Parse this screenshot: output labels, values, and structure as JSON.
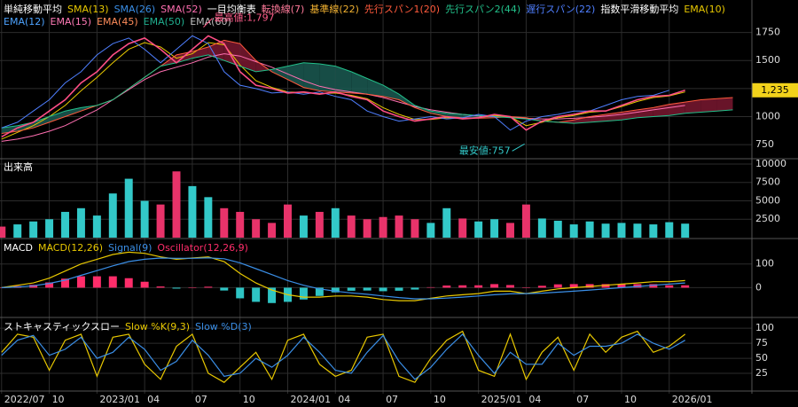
{
  "chart_data": [
    {
      "type": "line",
      "x": [
        0,
        1,
        2,
        3,
        4,
        5,
        6,
        7,
        8,
        9,
        10,
        11,
        12,
        13,
        14,
        15,
        16,
        17,
        18,
        19,
        20,
        21,
        22,
        23,
        24,
        25,
        26,
        27,
        28,
        29,
        30,
        31,
        32,
        33,
        34,
        35,
        36,
        37,
        38,
        39,
        40,
        41,
        42,
        43,
        44,
        45,
        46
      ],
      "xlim": [
        -0.1,
        47.2
      ],
      "ylim": [
        633,
        2023
      ],
      "yticks": [
        750,
        1000,
        1250,
        1500,
        1750
      ],
      "grid": true,
      "price": {
        "color": "#ff4f86",
        "values": [
          820,
          900,
          950,
          1050,
          1150,
          1300,
          1400,
          1550,
          1650,
          1700,
          1600,
          1480,
          1600,
          1720,
          1650,
          1400,
          1280,
          1250,
          1210,
          1220,
          1200,
          1220,
          1180,
          1150,
          1050,
          1000,
          960,
          980,
          1000,
          980,
          990,
          1020,
          1000,
          880,
          960,
          1000,
          1020,
          1050,
          1050,
          1100,
          1150,
          1180,
          1190,
          1235,
          null,
          null,
          null
        ]
      },
      "cloud_colors": {
        "up": "#7a1830",
        "down": "#1b5a52"
      },
      "groups": [
        {
          "title": "単純移動平均",
          "series": [
            {
              "name": "SMA(13)",
              "color": "#e8c800",
              "values": [
                800,
                860,
                920,
                1000,
                1100,
                1230,
                1350,
                1480,
                1600,
                1660,
                1620,
                1520,
                1560,
                1660,
                1640,
                1460,
                1320,
                1260,
                1220,
                1215,
                1205,
                1210,
                1190,
                1160,
                1080,
                1020,
                975,
                975,
                990,
                985,
                990,
                1010,
                1000,
                920,
                950,
                990,
                1010,
                1040,
                1050,
                1090,
                1135,
                1170,
                1185,
                1220,
                null,
                null,
                null
              ]
            },
            {
              "name": "SMA(26)",
              "color": "#3a8ee6"
            },
            {
              "name": "SMA(52)",
              "color": "#ff6fb1",
              "values": [
                780,
                800,
                830,
                870,
                920,
                990,
                1060,
                1150,
                1240,
                1330,
                1400,
                1440,
                1480,
                1530,
                1560,
                1540,
                1490,
                1440,
                1380,
                1320,
                1270,
                1240,
                1220,
                1200,
                1170,
                1130,
                1090,
                1060,
                1040,
                1020,
                1005,
                1000,
                995,
                985,
                980,
                980,
                985,
                995,
                1005,
                1020,
                1040,
                1060,
                1080,
                1100,
                null,
                null,
                null
              ]
            }
          ]
        },
        {
          "title": "一目均衡表",
          "series": [
            {
              "name": "転換線(7)",
              "color": "#ff7a9a"
            },
            {
              "name": "基準線(22)",
              "color": "#f0b030"
            },
            {
              "name": "先行スパン1(20)",
              "color": "#ff5a3c",
              "cloud": true,
              "values": [
                850,
                870,
                900,
                950,
                1000,
                1050,
                1100,
                1150,
                1250,
                1350,
                1450,
                1550,
                1580,
                1620,
                1680,
                1650,
                1500,
                1400,
                1330,
                1260,
                1230,
                1220,
                1210,
                1200,
                1180,
                1150,
                1080,
                1030,
                1000,
                990,
                985,
                990,
                1000,
                990,
                960,
                950,
                970,
                1000,
                1020,
                1040,
                1060,
                1080,
                1110,
                1130,
                1150,
                1160,
                1170
              ]
            },
            {
              "name": "先行スパン2(44)",
              "color": "#22c08a",
              "cloud": true,
              "values": [
                900,
                920,
                950,
                1000,
                1050,
                1080,
                1100,
                1150,
                1250,
                1350,
                1450,
                1480,
                1520,
                1550,
                1500,
                1450,
                1400,
                1420,
                1450,
                1480,
                1470,
                1450,
                1400,
                1340,
                1280,
                1200,
                1100,
                1050,
                1030,
                1020,
                1010,
                1000,
                990,
                980,
                960,
                950,
                940,
                950,
                960,
                970,
                990,
                1000,
                1010,
                1030,
                1040,
                1050,
                1060
              ]
            },
            {
              "name": "遅行スパン(22)",
              "color": "#4f7fff",
              "values": [
                900,
                950,
                1050,
                1150,
                1300,
                1400,
                1550,
                1650,
                1700,
                1600,
                1480,
                1600,
                1720,
                1650,
                1400,
                1280,
                1250,
                1210,
                1220,
                1200,
                1220,
                1180,
                1150,
                1050,
                1000,
                960,
                980,
                1000,
                980,
                990,
                1020,
                1000,
                880,
                960,
                1000,
                1020,
                1050,
                1050,
                1100,
                1150,
                1180,
                1190,
                1235,
                null,
                null,
                null,
                null
              ]
            }
          ]
        },
        {
          "title": "指数平滑移動平均",
          "series": [
            {
              "name": "EMA(10)",
              "color": "#e8c800"
            },
            {
              "name": "EMA(12)",
              "color": "#4da3ff"
            },
            {
              "name": "EMA(15)",
              "color": "#ff7ab6"
            },
            {
              "name": "EMA(45)",
              "color": "#ff8c5a"
            },
            {
              "name": "EMA(50)",
              "color": "#20b090"
            },
            {
              "name": "EMA(60)",
              "color": "#bbbbbb"
            }
          ]
        }
      ],
      "annotations": [
        {
          "label": "最高値:1,797",
          "value": 1797,
          "x": 12.7
        },
        {
          "label": "最安値:757",
          "value": 757,
          "x": 32.9
        }
      ],
      "last_price": {
        "label": "1,235",
        "value": 1235,
        "color": "#f2d21b"
      }
    },
    {
      "type": "bar",
      "title": "出来高",
      "x": [
        0,
        1,
        2,
        3,
        4,
        5,
        6,
        7,
        8,
        9,
        10,
        11,
        12,
        13,
        14,
        15,
        16,
        17,
        18,
        19,
        20,
        21,
        22,
        23,
        24,
        25,
        26,
        27,
        28,
        29,
        30,
        31,
        32,
        33,
        34,
        35,
        36,
        37,
        38,
        39,
        40,
        41,
        42,
        43
      ],
      "xlim": [
        -0.1,
        47.2
      ],
      "ylim": [
        0,
        10600
      ],
      "yticks": [
        2500,
        5000,
        7500,
        10000
      ],
      "grid": true,
      "color": "#e8336a",
      "up_color": "#33c9c9",
      "values": [
        1500,
        1800,
        2200,
        2500,
        3500,
        4000,
        3000,
        6000,
        8000,
        5000,
        4500,
        9000,
        7000,
        5500,
        4000,
        3500,
        2500,
        2000,
        4500,
        3000,
        3500,
        4000,
        3000,
        2500,
        2800,
        3000,
        2500,
        2000,
        4000,
        2600,
        2200,
        2500,
        2000,
        4500,
        2600,
        2300,
        1800,
        2200,
        1900,
        2000,
        1900,
        1800,
        2100,
        1900
      ]
    },
    {
      "type": "line",
      "title": "MACD",
      "x": [
        0,
        1,
        2,
        3,
        4,
        5,
        6,
        7,
        8,
        9,
        10,
        11,
        12,
        13,
        14,
        15,
        16,
        17,
        18,
        19,
        20,
        21,
        22,
        23,
        24,
        25,
        26,
        27,
        28,
        29,
        30,
        31,
        32,
        33,
        34,
        35,
        36,
        37,
        38,
        39,
        40,
        41,
        42,
        43
      ],
      "xlim": [
        -0.1,
        47.2
      ],
      "ylim": [
        -122,
        200
      ],
      "yticks": [
        0,
        100
      ],
      "grid": true,
      "series": [
        {
          "name": "MACD(12,26)",
          "color": "#e8c800",
          "values": [
            0,
            10,
            20,
            40,
            70,
            100,
            120,
            140,
            150,
            145,
            130,
            120,
            125,
            130,
            110,
            60,
            20,
            -10,
            -30,
            -40,
            -40,
            -35,
            -35,
            -40,
            -50,
            -55,
            -55,
            -45,
            -35,
            -30,
            -25,
            -15,
            -15,
            -25,
            -15,
            -5,
            0,
            5,
            10,
            15,
            20,
            25,
            25,
            30
          ]
        },
        {
          "name": "Signal(9)",
          "color": "#3a8ee6",
          "values": [
            0,
            3,
            8,
            18,
            32,
            52,
            72,
            92,
            110,
            120,
            125,
            124,
            124,
            126,
            122,
            105,
            80,
            55,
            30,
            10,
            -5,
            -15,
            -22,
            -28,
            -35,
            -42,
            -47,
            -47,
            -44,
            -40,
            -35,
            -30,
            -26,
            -25,
            -23,
            -19,
            -15,
            -10,
            -5,
            0,
            5,
            10,
            15,
            20
          ]
        },
        {
          "name": "Oscillator(12,26,9)",
          "color": "#ff2d6a",
          "neg_color": "#2ec4c4",
          "style": "bar",
          "values": [
            0,
            7,
            12,
            22,
            38,
            48,
            48,
            48,
            40,
            25,
            5,
            -4,
            1,
            4,
            -12,
            -45,
            -60,
            -65,
            -60,
            -50,
            -35,
            -20,
            -13,
            -12,
            -15,
            -13,
            -8,
            2,
            9,
            10,
            10,
            15,
            11,
            1,
            8,
            14,
            15,
            15,
            15,
            15,
            15,
            15,
            10,
            10
          ]
        }
      ]
    },
    {
      "type": "line",
      "title": "ストキャスティックスロー",
      "x": [
        0,
        1,
        2,
        3,
        4,
        5,
        6,
        7,
        8,
        9,
        10,
        11,
        12,
        13,
        14,
        15,
        16,
        17,
        18,
        19,
        20,
        21,
        22,
        23,
        24,
        25,
        26,
        27,
        28,
        29,
        30,
        31,
        32,
        33,
        34,
        35,
        36,
        37,
        38,
        39,
        40,
        41,
        42,
        43
      ],
      "xlim": [
        -0.1,
        47.2
      ],
      "ylim": [
        -3,
        115
      ],
      "yticks": [
        25,
        50,
        75,
        100
      ],
      "grid": true,
      "xticks": [
        {
          "value": 0,
          "label": "2022/07"
        },
        {
          "value": 3,
          "label": "10"
        },
        {
          "value": 6,
          "label": "2023/01"
        },
        {
          "value": 9,
          "label": "04"
        },
        {
          "value": 12,
          "label": "07"
        },
        {
          "value": 15,
          "label": "10"
        },
        {
          "value": 18,
          "label": "2024/01"
        },
        {
          "value": 21,
          "label": "04"
        },
        {
          "value": 24,
          "label": "07"
        },
        {
          "value": 27,
          "label": "10"
        },
        {
          "value": 30,
          "label": "2025/01"
        },
        {
          "value": 33,
          "label": "04"
        },
        {
          "value": 36,
          "label": "07"
        },
        {
          "value": 39,
          "label": "10"
        },
        {
          "value": 42,
          "label": "2026/01"
        }
      ],
      "series": [
        {
          "name": "Slow %K(9,3)",
          "color": "#e8c800",
          "values": [
            60,
            90,
            85,
            30,
            80,
            90,
            20,
            85,
            90,
            40,
            15,
            70,
            90,
            25,
            10,
            35,
            60,
            15,
            80,
            90,
            40,
            20,
            30,
            85,
            90,
            20,
            10,
            50,
            80,
            95,
            30,
            20,
            90,
            15,
            60,
            85,
            30,
            90,
            60,
            85,
            95,
            60,
            70,
            90
          ]
        },
        {
          "name": "Slow %D(3)",
          "color": "#3a8ee6",
          "values": [
            55,
            80,
            88,
            55,
            65,
            85,
            50,
            60,
            85,
            65,
            30,
            45,
            80,
            55,
            20,
            25,
            50,
            35,
            55,
            85,
            60,
            30,
            25,
            60,
            88,
            45,
            15,
            35,
            65,
            90,
            55,
            25,
            60,
            40,
            40,
            75,
            55,
            70,
            70,
            75,
            90,
            75,
            65,
            80
          ]
        }
      ]
    }
  ]
}
